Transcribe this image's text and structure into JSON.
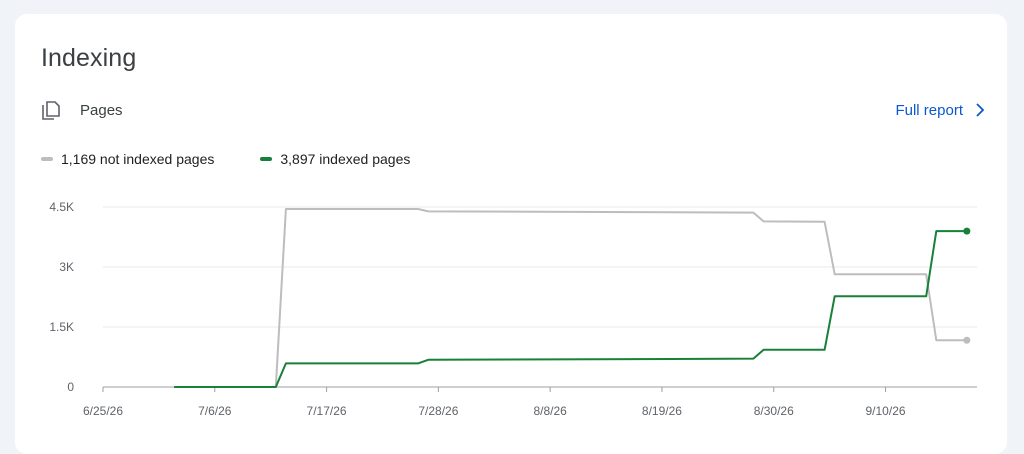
{
  "card": {
    "title": "Indexing",
    "section_label": "Pages",
    "section_icon": "copy-pages-icon",
    "full_report_label": "Full report",
    "link_color": "#0b57d0"
  },
  "legend": {
    "not_indexed_label": "1,169 not indexed pages",
    "indexed_label": "3,897 indexed pages"
  },
  "chart_data": {
    "type": "line",
    "title": "",
    "xlabel": "",
    "ylabel": "",
    "ylim": [
      0,
      4500
    ],
    "xlim": [
      "2026-06-25",
      "2026-09-19"
    ],
    "y_ticks": [
      {
        "value": 0,
        "label": "0"
      },
      {
        "value": 1500,
        "label": "1.5K"
      },
      {
        "value": 3000,
        "label": "3K"
      },
      {
        "value": 4500,
        "label": "4.5K"
      }
    ],
    "x_ticks": [
      {
        "date": "2026-06-25",
        "label": "6/25/26"
      },
      {
        "date": "2026-07-06",
        "label": "7/6/26"
      },
      {
        "date": "2026-07-17",
        "label": "7/17/26"
      },
      {
        "date": "2026-07-28",
        "label": "7/28/26"
      },
      {
        "date": "2026-08-08",
        "label": "8/8/26"
      },
      {
        "date": "2026-08-19",
        "label": "8/19/26"
      },
      {
        "date": "2026-08-30",
        "label": "8/30/26"
      },
      {
        "date": "2026-09-10",
        "label": "9/10/26"
      }
    ],
    "grid": true,
    "legend_position": "top-left",
    "series": [
      {
        "key": "not_indexed",
        "color": "#bdbdbd",
        "points": [
          [
            "2026-07-02",
            0
          ],
          [
            "2026-07-12",
            0
          ],
          [
            "2026-07-13",
            4450
          ],
          [
            "2026-07-26",
            4450
          ],
          [
            "2026-07-27",
            4390
          ],
          [
            "2026-08-20",
            4370
          ],
          [
            "2026-08-28",
            4360
          ],
          [
            "2026-08-29",
            4140
          ],
          [
            "2026-09-04",
            4130
          ],
          [
            "2026-09-05",
            2820
          ],
          [
            "2026-09-14",
            2820
          ],
          [
            "2026-09-15",
            1169
          ],
          [
            "2026-09-18",
            1169
          ]
        ]
      },
      {
        "key": "indexed",
        "color": "#188038",
        "points": [
          [
            "2026-07-02",
            0
          ],
          [
            "2026-07-12",
            0
          ],
          [
            "2026-07-13",
            590
          ],
          [
            "2026-07-26",
            590
          ],
          [
            "2026-07-27",
            680
          ],
          [
            "2026-08-20",
            700
          ],
          [
            "2026-08-28",
            710
          ],
          [
            "2026-08-29",
            930
          ],
          [
            "2026-09-04",
            930
          ],
          [
            "2026-09-05",
            2270
          ],
          [
            "2026-09-14",
            2270
          ],
          [
            "2026-09-15",
            3897
          ],
          [
            "2026-09-18",
            3897
          ]
        ]
      }
    ]
  }
}
